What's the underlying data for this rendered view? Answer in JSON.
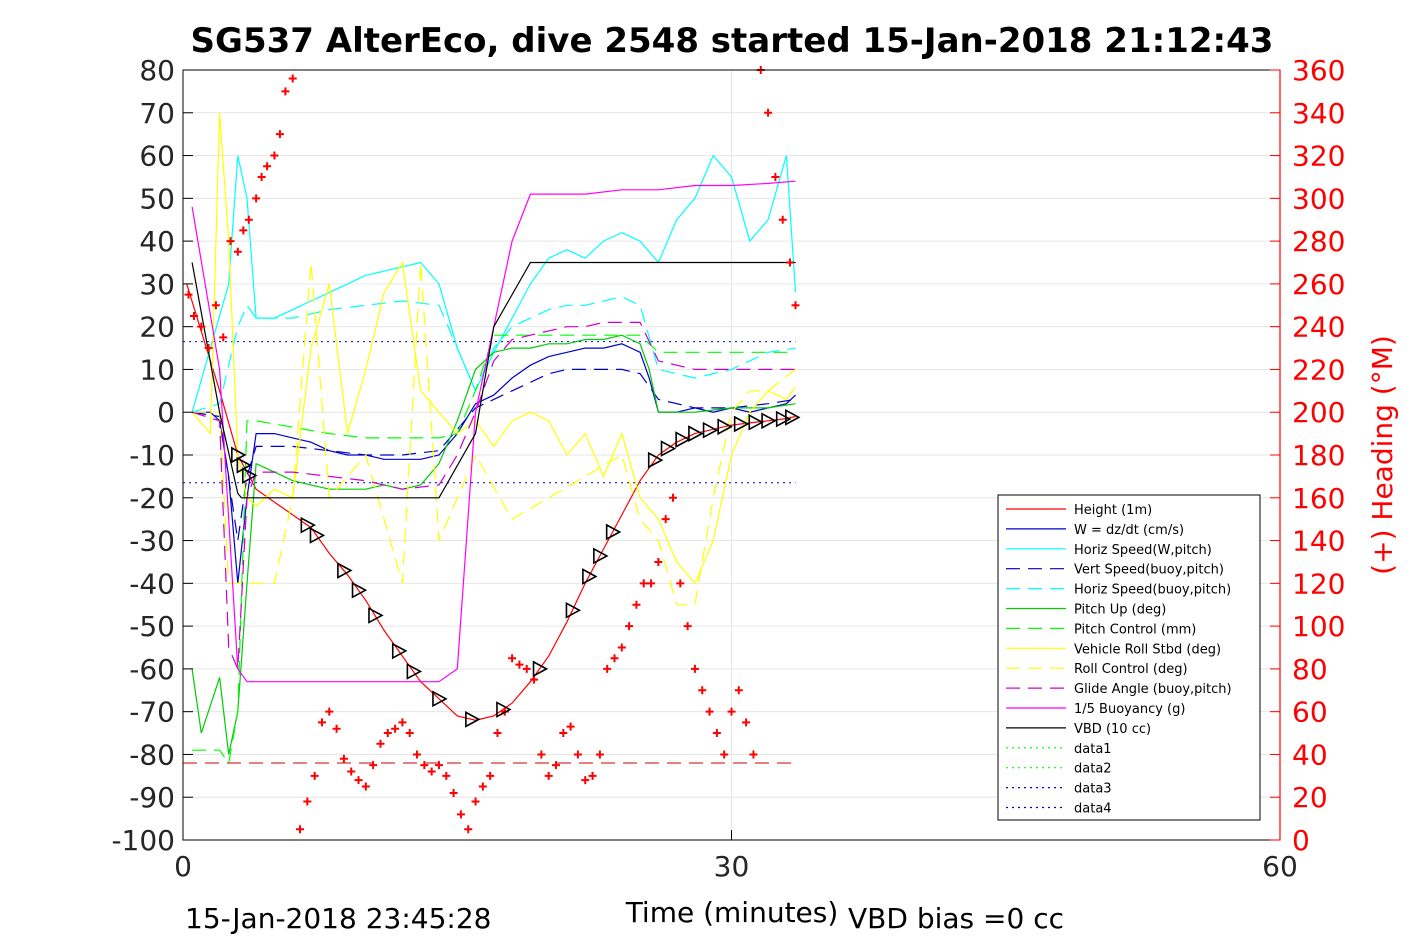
{
  "chart_data": {
    "type": "line",
    "title": "SG537 AlterEco, dive 2548 started 15-Jan-2018 21:12:43",
    "xlabel": "Time (minutes)",
    "ylabel": "",
    "y2label": "(+) Heading (°M)",
    "xlim": [
      0,
      60
    ],
    "ylim": [
      -100,
      80
    ],
    "y2lim": [
      0,
      360
    ],
    "xticks": [
      "0",
      "30",
      "60"
    ],
    "yticks": [
      "80",
      "70",
      "60",
      "50",
      "40",
      "30",
      "20",
      "10",
      "0",
      "-10",
      "-20",
      "-30",
      "-40",
      "-50",
      "-60",
      "-70",
      "-80",
      "-90",
      "-100"
    ],
    "y2ticks": [
      "360",
      "340",
      "320",
      "300",
      "280",
      "260",
      "240",
      "220",
      "200",
      "180",
      "160",
      "140",
      "120",
      "100",
      "80",
      "60",
      "40",
      "20",
      "0"
    ],
    "grid": true,
    "legend_position": "lower-right",
    "footer_left": "15-Jan-2018 23:45:28",
    "footer_right": "VBD bias =0 cc",
    "colors": {
      "height": "#ff0000",
      "w": "#0000cc",
      "horiz_speed": "#00ffff",
      "vert_speed": "#0000cc",
      "horiz_speed_buoy": "#00ffff",
      "pitch_up": "#00cc00",
      "pitch_control": "#00ff00",
      "roll": "#ffff00",
      "roll_control": "#ffff00",
      "glide_angle": "#cc00cc",
      "buoyancy": "#ff00ff",
      "vbd": "#000000",
      "heading": "#ff0000",
      "right_axis": "#ff0000"
    },
    "legend": [
      {
        "label": "Height (1m)",
        "color": "#ff0000",
        "style": "solid"
      },
      {
        "label": "W = dz/dt (cm/s)",
        "color": "#0000cc",
        "style": "solid"
      },
      {
        "label": "Horiz Speed(W,pitch)",
        "color": "#00ffff",
        "style": "solid"
      },
      {
        "label": "Vert Speed(buoy,pitch)",
        "color": "#0000cc",
        "style": "dashed"
      },
      {
        "label": "Horiz Speed(buoy,pitch)",
        "color": "#00ffff",
        "style": "dashed"
      },
      {
        "label": "Pitch Up (deg)",
        "color": "#00cc00",
        "style": "solid"
      },
      {
        "label": "Pitch Control (mm)",
        "color": "#00ff00",
        "style": "dashed"
      },
      {
        "label": "Vehicle Roll Stbd (deg)",
        "color": "#ffff00",
        "style": "solid"
      },
      {
        "label": "Roll Control (deg)",
        "color": "#ffff00",
        "style": "dashed"
      },
      {
        "label": "Glide Angle (buoy,pitch)",
        "color": "#cc00cc",
        "style": "dashed"
      },
      {
        "label": "1/5 Buoyancy (g)",
        "color": "#ff00ff",
        "style": "solid"
      },
      {
        "label": "VBD (10 cc)",
        "color": "#000000",
        "style": "solid"
      },
      {
        "label": "data1",
        "color": "#00ff00",
        "style": "dotted"
      },
      {
        "label": "data2",
        "color": "#00ff00",
        "style": "dotted"
      },
      {
        "label": "data3",
        "color": "#0000cc",
        "style": "dotted"
      },
      {
        "label": "data4",
        "color": "#0000cc",
        "style": "dotted"
      }
    ],
    "series": [
      {
        "name": "Height (1m)",
        "axis": "left",
        "x": [
          0.2,
          2,
          3,
          4,
          5,
          6,
          7,
          8,
          9,
          10,
          11,
          12,
          13,
          14,
          15,
          16,
          17,
          18,
          19,
          20,
          21,
          22,
          23,
          24,
          25,
          26,
          27,
          28,
          29,
          30,
          31,
          32,
          33,
          33.5
        ],
        "y": [
          30,
          5,
          -10,
          -18,
          -21,
          -24,
          -27,
          -33,
          -38,
          -44,
          -51,
          -57,
          -63,
          -67,
          -71,
          -72,
          -71,
          -68,
          -63,
          -57,
          -49,
          -40,
          -32,
          -24,
          -16,
          -10,
          -7,
          -5,
          -4,
          -3,
          -2.5,
          -2,
          -1.5,
          -1
        ]
      },
      {
        "name": "W = dz/dt (cm/s)",
        "axis": "left",
        "x": [
          0.5,
          1.5,
          2,
          2.5,
          3,
          3.5,
          4,
          5,
          6,
          7,
          8,
          9,
          10,
          11,
          12,
          13,
          14,
          15,
          16,
          17,
          18,
          19,
          20,
          21,
          22,
          23,
          24,
          25,
          25.5,
          26,
          27,
          28,
          29,
          30,
          31,
          32,
          33,
          33.5
        ],
        "y": [
          0,
          0,
          -2,
          -15,
          -40,
          -20,
          -5,
          -5,
          -6,
          -7,
          -9,
          -10,
          -10,
          -11,
          -11,
          -11,
          -10,
          -5,
          2,
          4,
          8,
          11,
          13,
          14,
          15,
          15,
          16,
          14,
          8,
          0,
          0,
          1,
          0,
          1,
          0,
          1,
          2,
          4
        ]
      },
      {
        "name": "Horiz Speed(W,pitch)",
        "axis": "left",
        "x": [
          0.5,
          1.5,
          2.5,
          3,
          3.5,
          4,
          5,
          6,
          7,
          8,
          9,
          10,
          11,
          12,
          13,
          14,
          15,
          16,
          17,
          18,
          19,
          20,
          21,
          22,
          23,
          24,
          25,
          26,
          27,
          28,
          29,
          30,
          31,
          32,
          33,
          33.5
        ],
        "y": [
          0,
          15,
          30,
          60,
          50,
          22,
          22,
          24,
          26,
          28,
          30,
          32,
          33,
          34,
          35,
          30,
          15,
          5,
          14,
          22,
          30,
          36,
          38,
          36,
          40,
          42,
          40,
          35,
          45,
          50,
          60,
          55,
          40,
          45,
          60,
          28
        ]
      },
      {
        "name": "Vert Speed(buoy,pitch)",
        "axis": "left",
        "x": [
          0.5,
          2,
          3,
          3.5,
          4,
          6,
          8,
          10,
          12,
          14,
          15,
          16,
          17,
          18,
          19,
          20,
          21,
          22,
          23,
          24,
          25,
          26,
          28,
          30,
          32,
          33.5
        ],
        "y": [
          0,
          -1,
          -30,
          -15,
          -8,
          -8,
          -9,
          -10,
          -10,
          -9,
          -4,
          1,
          3,
          5,
          7,
          9,
          10,
          10,
          10,
          10,
          9,
          3,
          1,
          1,
          2,
          3
        ]
      },
      {
        "name": "Horiz Speed(buoy,pitch)",
        "axis": "left",
        "x": [
          0.5,
          2,
          3,
          3.5,
          4,
          6,
          8,
          10,
          12,
          14,
          15,
          16,
          17,
          18,
          19,
          20,
          21,
          22,
          23,
          24,
          25,
          26,
          28,
          30,
          32,
          33.5
        ],
        "y": [
          0,
          2,
          20,
          25,
          22,
          22,
          24,
          25,
          26,
          25,
          15,
          5,
          15,
          20,
          22,
          24,
          25,
          25,
          26,
          27,
          25,
          10,
          8,
          10,
          14,
          15
        ]
      },
      {
        "name": "Pitch Up (deg)",
        "axis": "left",
        "x": [
          0.5,
          1,
          2,
          2.5,
          3,
          3.5,
          4,
          5,
          6,
          7,
          8,
          9,
          10,
          11,
          12,
          13,
          14,
          15,
          16,
          17,
          18,
          19,
          20,
          21,
          22,
          23,
          24,
          25,
          25.5,
          26,
          28,
          30,
          32,
          33.5
        ],
        "y": [
          -60,
          -75,
          -62,
          -80,
          -70,
          -40,
          -12,
          -14,
          -16,
          -17,
          -18,
          -18,
          -18,
          -17,
          -18,
          -17,
          -12,
          -2,
          10,
          14,
          15,
          15,
          16,
          16,
          17,
          17,
          18,
          16,
          10,
          0,
          0,
          1,
          1,
          2
        ]
      },
      {
        "name": "Pitch Control (mm)",
        "axis": "left",
        "x": [
          0.5,
          2,
          2.5,
          3,
          3.5,
          4,
          8,
          10,
          12,
          14,
          15,
          16,
          17,
          18,
          19,
          20,
          21,
          22,
          23,
          24,
          25,
          26,
          28,
          30,
          32,
          33.5
        ],
        "y": [
          -79,
          -79,
          -82,
          -70,
          -2,
          -2,
          -5,
          -6,
          -6,
          -6,
          -5,
          5,
          18,
          18,
          18,
          18,
          18,
          18,
          18,
          18,
          18,
          14,
          14,
          14,
          14,
          14
        ]
      },
      {
        "name": "Vehicle Roll Stbd (deg)",
        "axis": "left",
        "x": [
          0.5,
          1.5,
          2,
          2.5,
          3,
          3.5,
          4,
          5,
          6,
          7,
          8,
          9,
          10,
          11,
          12,
          13,
          14,
          15,
          16,
          17,
          18,
          19,
          20,
          21,
          22,
          23,
          24,
          25,
          26,
          27,
          28,
          29,
          30,
          31,
          32,
          33,
          33.5
        ],
        "y": [
          0,
          -5,
          70,
          40,
          -10,
          -20,
          -22,
          -18,
          -20,
          15,
          30,
          -5,
          10,
          28,
          35,
          5,
          0,
          -5,
          -2,
          -8,
          -2,
          0,
          -2,
          -10,
          -5,
          -15,
          -5,
          -20,
          -25,
          -35,
          -40,
          -30,
          -10,
          0,
          5,
          3,
          6
        ]
      },
      {
        "name": "Roll Control (deg)",
        "axis": "left",
        "x": [
          0.5,
          2,
          2.5,
          3,
          4,
          5,
          6,
          7,
          8,
          10,
          12,
          13,
          14,
          16,
          18,
          20,
          22,
          24,
          25,
          26,
          27,
          28,
          29,
          30,
          31,
          32,
          33.5
        ],
        "y": [
          0,
          0,
          -40,
          -40,
          -40,
          -40,
          -20,
          35,
          -20,
          -10,
          -40,
          35,
          -30,
          -10,
          -25,
          -20,
          -15,
          -10,
          -25,
          -30,
          -45,
          -45,
          -20,
          0,
          5,
          5,
          10
        ]
      },
      {
        "name": "Glide Angle (buoy,pitch)",
        "axis": "left",
        "x": [
          0.5,
          2,
          2.5,
          3,
          3.5,
          4,
          6,
          8,
          10,
          12,
          14,
          15,
          16,
          17,
          18,
          19,
          20,
          21,
          22,
          23,
          24,
          25,
          26,
          28,
          30,
          32,
          33.5
        ],
        "y": [
          0,
          -2,
          -55,
          -60,
          -20,
          -14,
          -14,
          -15,
          -16,
          -18,
          -17,
          -10,
          0,
          12,
          17,
          18,
          19,
          20,
          20,
          21,
          21,
          21,
          12,
          10,
          10,
          10,
          10
        ]
      },
      {
        "name": "1/5 Buoyancy (g)",
        "axis": "left",
        "x": [
          0.5,
          2,
          3,
          3.5,
          5,
          8,
          10,
          12,
          14,
          15,
          16,
          18,
          19,
          20,
          22,
          24,
          26,
          28,
          30,
          32,
          33.5
        ],
        "y": [
          48,
          10,
          -60,
          -63,
          -63,
          -63,
          -63,
          -63,
          -63,
          -60,
          0,
          40,
          51,
          51,
          51,
          52,
          52,
          53,
          53,
          53.5,
          54
        ]
      },
      {
        "name": "VBD (10 cc)",
        "axis": "left",
        "x": [
          0.5,
          2,
          3,
          3.2,
          14,
          16,
          17,
          19,
          20,
          22,
          24,
          26,
          28,
          30,
          32,
          33.5
        ],
        "y": [
          35,
          0,
          -19,
          -20,
          -20,
          -5,
          20,
          35,
          35,
          35,
          35,
          35,
          35,
          35,
          35,
          35
        ]
      },
      {
        "name": "Heading",
        "axis": "right",
        "marker": "+",
        "x": [
          0.3,
          0.6,
          1,
          1.4,
          1.8,
          2.2,
          2.6,
          3,
          3.3,
          3.6,
          4,
          4.3,
          4.6,
          5,
          5.3,
          5.6,
          6,
          6.4,
          6.8,
          7.2,
          7.6,
          8,
          8.4,
          8.8,
          9.2,
          9.6,
          10,
          10.4,
          10.8,
          11.2,
          11.6,
          12,
          12.4,
          12.8,
          13.2,
          13.6,
          14,
          14.4,
          14.8,
          15.2,
          15.6,
          16,
          16.4,
          16.8,
          17.2,
          17.6,
          18,
          18.4,
          18.8,
          19.2,
          19.6,
          20,
          20.4,
          20.8,
          21.2,
          21.6,
          22,
          22.4,
          22.8,
          23.2,
          23.6,
          24,
          24.4,
          24.8,
          25.2,
          25.6,
          26,
          26.4,
          26.8,
          27.2,
          27.6,
          28,
          28.4,
          28.8,
          29.2,
          29.6,
          30,
          30.4,
          30.8,
          31.2,
          31.6,
          32,
          32.4,
          32.8,
          33.2,
          33.5
        ],
        "y": [
          255,
          245,
          240,
          230,
          250,
          235,
          280,
          275,
          285,
          290,
          300,
          310,
          315,
          320,
          330,
          350,
          356,
          5,
          18,
          30,
          55,
          60,
          52,
          38,
          32,
          28,
          25,
          35,
          45,
          50,
          52,
          55,
          50,
          40,
          35,
          32,
          35,
          30,
          22,
          12,
          5,
          18,
          25,
          30,
          50,
          60,
          85,
          82,
          80,
          75,
          40,
          30,
          35,
          50,
          53,
          40,
          28,
          30,
          40,
          80,
          85,
          90,
          100,
          110,
          120,
          120,
          130,
          150,
          160,
          120,
          100,
          80,
          70,
          60,
          50,
          40,
          60,
          70,
          55,
          40,
          360,
          340,
          310,
          290,
          270,
          250
        ]
      }
    ],
    "annotations": {
      "vbd_markers": "open triangles along the Height trace",
      "ref_lines": [
        {
          "label": "data3/data4",
          "y": 16.5,
          "style": "dotted",
          "color": "#0000cc"
        },
        {
          "label": "data3/data4",
          "y": -16.5,
          "style": "dotted",
          "color": "#0000cc"
        },
        {
          "label": "heading ref",
          "y": -82,
          "style": "dashed",
          "color": "#cc0000"
        }
      ]
    }
  }
}
